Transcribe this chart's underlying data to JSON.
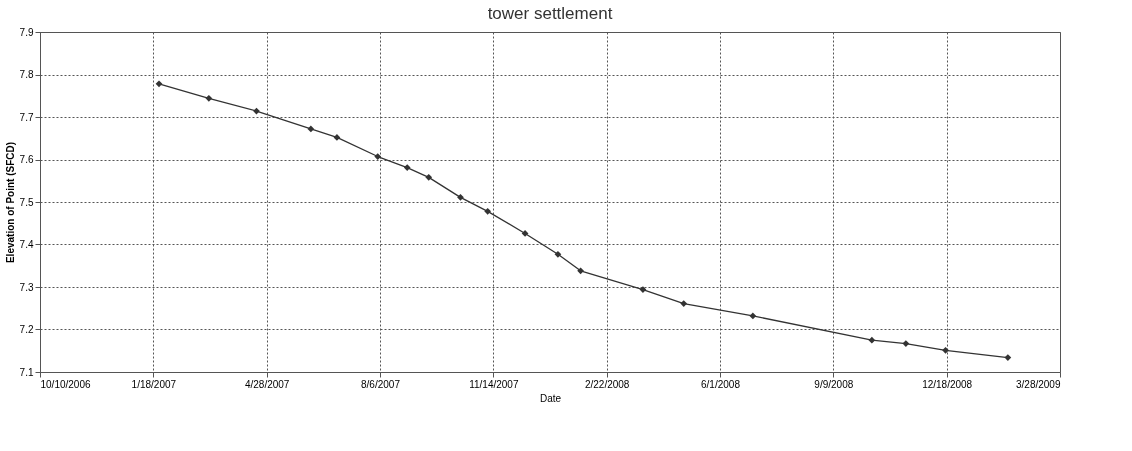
{
  "chart_data": {
    "type": "line",
    "title": "tower settlement",
    "xlabel": "Date",
    "ylabel": "Elevation of Point (SFCD)",
    "x": [
      "2007-01-23",
      "2007-03-08",
      "2007-04-19",
      "2007-06-06",
      "2007-06-29",
      "2007-08-04",
      "2007-08-30",
      "2007-09-18",
      "2007-10-16",
      "2007-11-09",
      "2007-12-12",
      "2008-01-10",
      "2008-01-30",
      "2008-03-25",
      "2008-04-30",
      "2008-06-30",
      "2008-10-13",
      "2008-11-12",
      "2008-12-17",
      "2009-02-10"
    ],
    "series": [
      {
        "color": "#333333",
        "values": [
          7.778,
          7.744,
          7.714,
          7.672,
          7.652,
          7.607,
          7.581,
          7.558,
          7.511,
          7.478,
          7.426,
          7.377,
          7.338,
          7.294,
          7.261,
          7.232,
          7.175,
          7.167,
          7.151,
          7.134
        ]
      }
    ],
    "xlim": [
      "2006-10-10",
      "2009-03-28"
    ],
    "xticks": [
      {
        "value": "2006-10-10",
        "label": "10/10/2006"
      },
      {
        "value": "2007-01-18",
        "label": "1/18/2007"
      },
      {
        "value": "2007-04-28",
        "label": "4/28/2007"
      },
      {
        "value": "2007-08-06",
        "label": "8/6/2007"
      },
      {
        "value": "2007-11-14",
        "label": "11/14/2007"
      },
      {
        "value": "2008-02-22",
        "label": "2/22/2008"
      },
      {
        "value": "2008-06-01",
        "label": "6/1/2008"
      },
      {
        "value": "2008-09-09",
        "label": "9/9/2008"
      },
      {
        "value": "2008-12-18",
        "label": "12/18/2008"
      },
      {
        "value": "2009-03-28",
        "label": "3/28/2009"
      }
    ],
    "ylim": [
      7.1,
      7.9
    ],
    "yticks": [
      7.1,
      7.2,
      7.3,
      7.4,
      7.5,
      7.6,
      7.7,
      7.8,
      7.9
    ],
    "grid": true,
    "marker": "diamond",
    "line_style": "solid"
  }
}
